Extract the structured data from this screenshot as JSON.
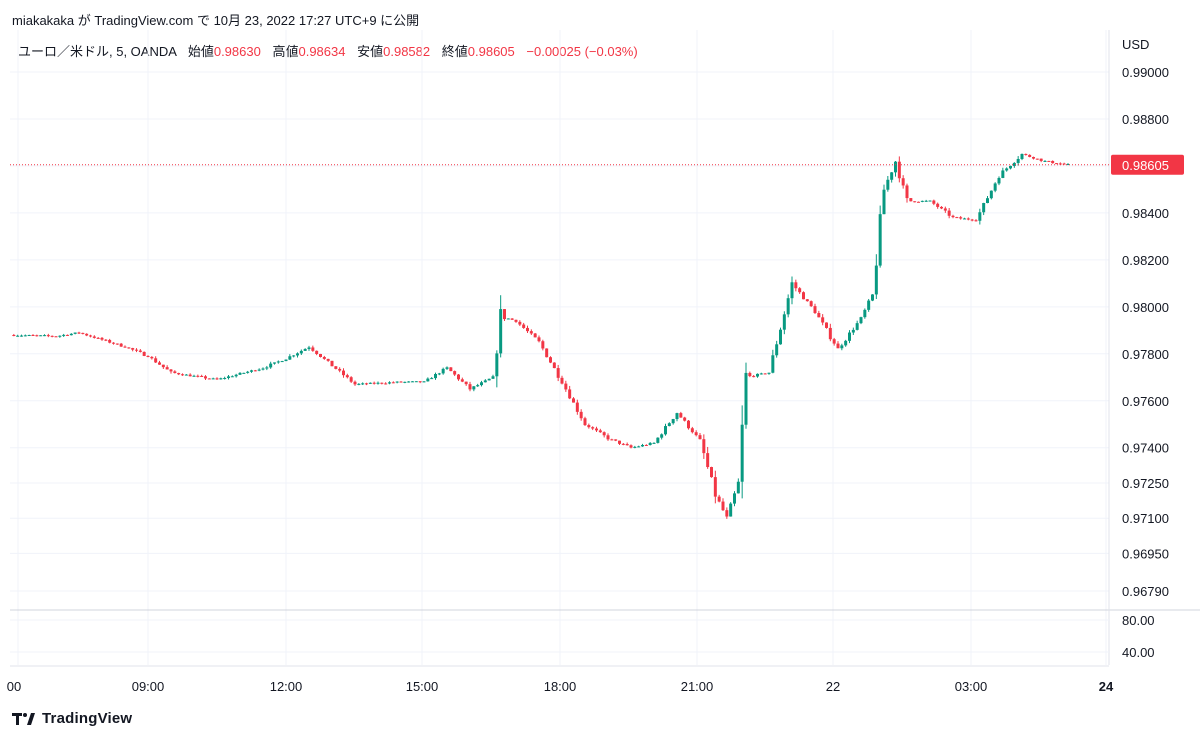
{
  "caption": "miakakaka が TradingView.com で 10月 23, 2022 17:27 UTC+9 に公開",
  "legend": {
    "symbol": "ユーロ／米ドル, 5, OANDA",
    "open_label": "始値",
    "open": "0.98630",
    "high_label": "高値",
    "high": "0.98634",
    "low_label": "安値",
    "low": "0.98582",
    "close_label": "終値",
    "close": "0.98605",
    "change": "−0.00025 (−0.03%)"
  },
  "currency": "USD",
  "last_price_label": "0.98605",
  "brand": "TradingView",
  "colors": {
    "up": "#089981",
    "down": "#f23645",
    "grid": "#f0f3fa",
    "text": "#131722"
  },
  "chart_data": {
    "type": "candlestick",
    "price_axis": {
      "ticks": [
        0.99,
        0.988,
        0.986,
        0.984,
        0.982,
        0.98,
        0.978,
        0.976,
        0.974,
        0.9725,
        0.971,
        0.9695,
        0.9679
      ],
      "tick_labels": [
        "0.99000",
        "0.98800",
        "0.98600",
        "0.98400",
        "0.98200",
        "0.98000",
        "0.97800",
        "0.97600",
        "0.97400",
        "0.97250",
        "0.97100",
        "0.96950",
        "0.96790"
      ],
      "last_price": 0.98605
    },
    "indicator_axis": {
      "ticks": [
        80,
        40
      ],
      "tick_labels": [
        "80.00",
        "40.00"
      ]
    },
    "time_axis": {
      "labels": [
        "00",
        "09:00",
        "12:00",
        "15:00",
        "18:00",
        "21:00",
        "22",
        "03:00",
        "24"
      ]
    },
    "anchors": [
      [
        "06:00",
        0.9788
      ],
      [
        "07:00",
        0.97875
      ],
      [
        "07:30",
        0.9789
      ],
      [
        "08:30",
        0.9783
      ],
      [
        "09:00",
        0.9779
      ],
      [
        "09:30",
        0.9772
      ],
      [
        "10:30",
        0.9769
      ],
      [
        "11:30",
        0.9774
      ],
      [
        "12:00",
        0.9778
      ],
      [
        "12:30",
        0.9783
      ],
      [
        "13:00",
        0.9775
      ],
      [
        "13:30",
        0.9767
      ],
      [
        "14:30",
        0.9768
      ],
      [
        "15:00",
        0.9768
      ],
      [
        "15:30",
        0.9774
      ],
      [
        "16:00",
        0.9765
      ],
      [
        "16:30",
        0.977
      ],
      [
        "16:40",
        0.9796
      ],
      [
        "17:00",
        0.9794
      ],
      [
        "17:30",
        0.9785
      ],
      [
        "18:00",
        0.9768
      ],
      [
        "18:30",
        0.975
      ],
      [
        "19:00",
        0.9744
      ],
      [
        "19:30",
        0.974
      ],
      [
        "20:00",
        0.9742
      ],
      [
        "20:30",
        0.9755
      ],
      [
        "21:00",
        0.9743
      ],
      [
        "21:20",
        0.972
      ],
      [
        "21:35",
        0.971
      ],
      [
        "21:50",
        0.9725
      ],
      [
        "22:00",
        0.977
      ],
      [
        "22:30",
        0.9772
      ],
      [
        "23:00",
        0.981
      ],
      [
        "23:30",
        0.9798
      ],
      [
        "00:00",
        0.9782
      ],
      [
        "00:30",
        0.9795
      ],
      [
        "00:45",
        0.9805
      ],
      [
        "01:00",
        0.985
      ],
      [
        "01:15",
        0.9862
      ],
      [
        "01:30",
        0.9845
      ],
      [
        "02:00",
        0.9845
      ],
      [
        "02:30",
        0.9838
      ],
      [
        "03:00",
        0.9837
      ],
      [
        "03:30",
        0.9856
      ],
      [
        "04:00",
        0.9865
      ],
      [
        "04:30",
        0.9862
      ],
      [
        "05:00",
        0.98605
      ]
    ]
  }
}
